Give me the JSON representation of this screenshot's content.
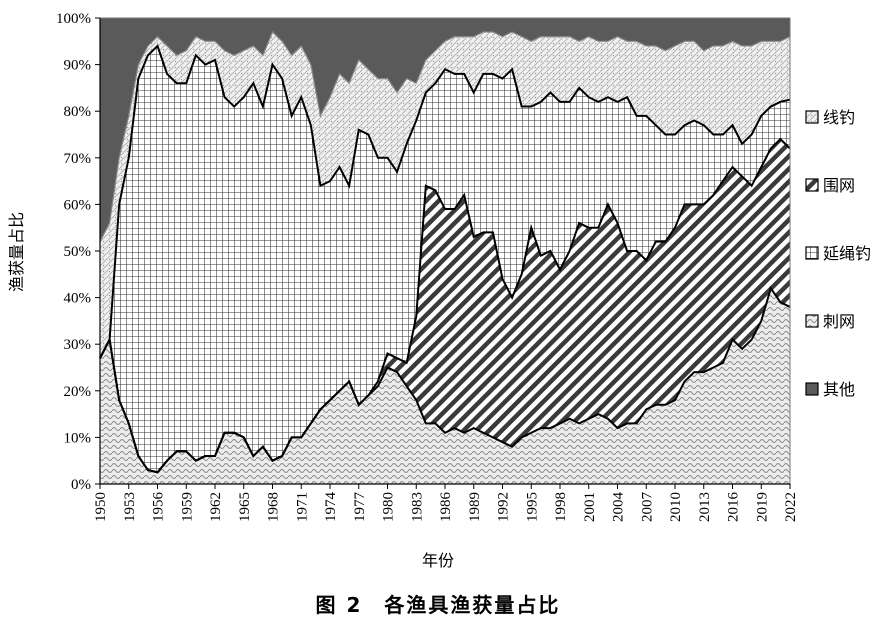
{
  "chart_data": {
    "type": "area",
    "stacked": true,
    "percent": true,
    "title": "图 2　各渔具渔获量占比",
    "xlabel": "年份",
    "ylabel": "渔获量占比",
    "ylim": [
      0,
      100
    ],
    "y_ticks": [
      "0%",
      "10%",
      "20%",
      "30%",
      "40%",
      "50%",
      "60%",
      "70%",
      "80%",
      "90%",
      "100%"
    ],
    "x_range": [
      1950,
      2022
    ],
    "x_ticks": [
      "1950",
      "1953",
      "1956",
      "1959",
      "1962",
      "1965",
      "1968",
      "1971",
      "1974",
      "1977",
      "1980",
      "1983",
      "1986",
      "1989",
      "1992",
      "1995",
      "1998",
      "2001",
      "2004",
      "2007",
      "2010",
      "2013",
      "2016",
      "2019",
      "2022"
    ],
    "legend_position": "right",
    "legend_order": [
      "线钓",
      "围网",
      "延绳钓",
      "刺网",
      "其他"
    ],
    "series_colors": {
      "刺网": "#d9d9d9",
      "延绳钓": "#cfcfcf",
      "围网": "#ffffff",
      "线钓": "#e3e3e3",
      "其他": "#595959"
    },
    "cumulative_keyframes": {
      "_note": "Upper boundary of each stacked layer in percent (stack order bottom→top: 刺网, 围网, 延绳钓, 线钓, 其他=100)",
      "刺网": [
        [
          1950,
          27
        ],
        [
          1951,
          31
        ],
        [
          1952,
          18
        ],
        [
          1953,
          13
        ],
        [
          1954,
          6
        ],
        [
          1955,
          3
        ],
        [
          1956,
          2.5
        ],
        [
          1957,
          5
        ],
        [
          1958,
          7
        ],
        [
          1959,
          7
        ],
        [
          1960,
          5
        ],
        [
          1961,
          6
        ],
        [
          1962,
          6
        ],
        [
          1963,
          11
        ],
        [
          1964,
          11
        ],
        [
          1965,
          10
        ],
        [
          1966,
          6
        ],
        [
          1967,
          8
        ],
        [
          1968,
          5
        ],
        [
          1969,
          6
        ],
        [
          1970,
          10
        ],
        [
          1971,
          10
        ],
        [
          1972,
          13
        ],
        [
          1973,
          16
        ],
        [
          1974,
          18
        ],
        [
          1975,
          20
        ],
        [
          1976,
          22
        ],
        [
          1977,
          17
        ],
        [
          1978,
          19
        ],
        [
          1979,
          21
        ],
        [
          1980,
          25
        ],
        [
          1981,
          24
        ],
        [
          1982,
          21
        ],
        [
          1983,
          18
        ],
        [
          1984,
          13
        ],
        [
          1985,
          13
        ],
        [
          1986,
          11
        ],
        [
          1987,
          12
        ],
        [
          1988,
          11
        ],
        [
          1989,
          12
        ],
        [
          1990,
          11
        ],
        [
          1991,
          10
        ],
        [
          1992,
          9
        ],
        [
          1993,
          8
        ],
        [
          1994,
          10
        ],
        [
          1995,
          11
        ],
        [
          1996,
          12
        ],
        [
          1997,
          12
        ],
        [
          1998,
          13
        ],
        [
          1999,
          14
        ],
        [
          2000,
          13
        ],
        [
          2001,
          14
        ],
        [
          2002,
          15
        ],
        [
          2003,
          14
        ],
        [
          2004,
          12
        ],
        [
          2005,
          13
        ],
        [
          2006,
          13
        ],
        [
          2007,
          16
        ],
        [
          2008,
          17
        ],
        [
          2009,
          17
        ],
        [
          2010,
          18
        ],
        [
          2011,
          22
        ],
        [
          2012,
          24
        ],
        [
          2013,
          24
        ],
        [
          2014,
          25
        ],
        [
          2015,
          26
        ],
        [
          2016,
          31
        ],
        [
          2017,
          29
        ],
        [
          2018,
          31
        ],
        [
          2019,
          35
        ],
        [
          2020,
          42
        ],
        [
          2021,
          39
        ],
        [
          2022,
          38
        ]
      ],
      "围网": [
        [
          1950,
          27
        ],
        [
          1951,
          31
        ],
        [
          1952,
          18
        ],
        [
          1953,
          13
        ],
        [
          1954,
          6
        ],
        [
          1955,
          3
        ],
        [
          1956,
          2.5
        ],
        [
          1957,
          5
        ],
        [
          1958,
          7
        ],
        [
          1959,
          7
        ],
        [
          1960,
          5
        ],
        [
          1961,
          6
        ],
        [
          1962,
          6
        ],
        [
          1963,
          11
        ],
        [
          1964,
          11
        ],
        [
          1965,
          10
        ],
        [
          1966,
          6
        ],
        [
          1967,
          8
        ],
        [
          1968,
          5
        ],
        [
          1969,
          6
        ],
        [
          1970,
          10
        ],
        [
          1971,
          10
        ],
        [
          1972,
          13
        ],
        [
          1973,
          16
        ],
        [
          1974,
          18
        ],
        [
          1975,
          20
        ],
        [
          1976,
          22
        ],
        [
          1977,
          17
        ],
        [
          1978,
          19
        ],
        [
          1979,
          22
        ],
        [
          1980,
          28
        ],
        [
          1981,
          27
        ],
        [
          1982,
          26
        ],
        [
          1983,
          36
        ],
        [
          1984,
          64
        ],
        [
          1985,
          63
        ],
        [
          1986,
          59
        ],
        [
          1987,
          59
        ],
        [
          1988,
          62
        ],
        [
          1989,
          53
        ],
        [
          1990,
          54
        ],
        [
          1991,
          54
        ],
        [
          1992,
          44
        ],
        [
          1993,
          40
        ],
        [
          1994,
          45
        ],
        [
          1995,
          55
        ],
        [
          1996,
          49
        ],
        [
          1997,
          50
        ],
        [
          1998,
          46
        ],
        [
          1999,
          50
        ],
        [
          2000,
          56
        ],
        [
          2001,
          55
        ],
        [
          2002,
          55
        ],
        [
          2003,
          60
        ],
        [
          2004,
          56
        ],
        [
          2005,
          50
        ],
        [
          2006,
          50
        ],
        [
          2007,
          48
        ],
        [
          2008,
          52
        ],
        [
          2009,
          52
        ],
        [
          2010,
          55
        ],
        [
          2011,
          60
        ],
        [
          2012,
          60
        ],
        [
          2013,
          60
        ],
        [
          2014,
          62
        ],
        [
          2015,
          65
        ],
        [
          2016,
          68
        ],
        [
          2017,
          66
        ],
        [
          2018,
          64
        ],
        [
          2019,
          68
        ],
        [
          2020,
          72
        ],
        [
          2021,
          74
        ],
        [
          2022,
          72
        ]
      ],
      "延绳钓": [
        [
          1950,
          27
        ],
        [
          1951,
          31
        ],
        [
          1952,
          60
        ],
        [
          1953,
          70
        ],
        [
          1954,
          87
        ],
        [
          1955,
          92
        ],
        [
          1956,
          94
        ],
        [
          1957,
          88
        ],
        [
          1958,
          86
        ],
        [
          1959,
          86
        ],
        [
          1960,
          92
        ],
        [
          1961,
          90
        ],
        [
          1962,
          91
        ],
        [
          1963,
          83
        ],
        [
          1964,
          81
        ],
        [
          1965,
          83
        ],
        [
          1966,
          86
        ],
        [
          1967,
          81
        ],
        [
          1968,
          90
        ],
        [
          1969,
          87
        ],
        [
          1970,
          79
        ],
        [
          1971,
          83
        ],
        [
          1972,
          77
        ],
        [
          1973,
          64
        ],
        [
          1974,
          65
        ],
        [
          1975,
          68
        ],
        [
          1976,
          64
        ],
        [
          1977,
          76
        ],
        [
          1978,
          75
        ],
        [
          1979,
          70
        ],
        [
          1980,
          70
        ],
        [
          1981,
          67
        ],
        [
          1982,
          73
        ],
        [
          1983,
          78
        ],
        [
          1984,
          84
        ],
        [
          1985,
          86
        ],
        [
          1986,
          89
        ],
        [
          1987,
          88
        ],
        [
          1988,
          88
        ],
        [
          1989,
          84
        ],
        [
          1990,
          88
        ],
        [
          1991,
          88
        ],
        [
          1992,
          87
        ],
        [
          1993,
          89
        ],
        [
          1994,
          81
        ],
        [
          1995,
          81
        ],
        [
          1996,
          82
        ],
        [
          1997,
          84
        ],
        [
          1998,
          82
        ],
        [
          1999,
          82
        ],
        [
          2000,
          85
        ],
        [
          2001,
          83
        ],
        [
          2002,
          82
        ],
        [
          2003,
          83
        ],
        [
          2004,
          82
        ],
        [
          2005,
          83
        ],
        [
          2006,
          79
        ],
        [
          2007,
          79
        ],
        [
          2008,
          77
        ],
        [
          2009,
          75
        ],
        [
          2010,
          75
        ],
        [
          2011,
          77
        ],
        [
          2012,
          78
        ],
        [
          2013,
          77
        ],
        [
          2014,
          75
        ],
        [
          2015,
          75
        ],
        [
          2016,
          77
        ],
        [
          2017,
          73
        ],
        [
          2018,
          75
        ],
        [
          2019,
          79
        ],
        [
          2020,
          81
        ],
        [
          2021,
          82
        ],
        [
          2022,
          82.5
        ]
      ],
      "线钓": [
        [
          1950,
          52
        ],
        [
          1951,
          56
        ],
        [
          1952,
          70
        ],
        [
          1953,
          79
        ],
        [
          1954,
          90
        ],
        [
          1955,
          94
        ],
        [
          1956,
          96
        ],
        [
          1957,
          94
        ],
        [
          1958,
          92
        ],
        [
          1959,
          93
        ],
        [
          1960,
          96
        ],
        [
          1961,
          95
        ],
        [
          1962,
          95
        ],
        [
          1963,
          93
        ],
        [
          1964,
          92
        ],
        [
          1965,
          93
        ],
        [
          1966,
          94
        ],
        [
          1967,
          92
        ],
        [
          1968,
          97
        ],
        [
          1969,
          95
        ],
        [
          1970,
          92
        ],
        [
          1971,
          94
        ],
        [
          1972,
          90
        ],
        [
          1973,
          79
        ],
        [
          1974,
          83
        ],
        [
          1975,
          88
        ],
        [
          1976,
          86
        ],
        [
          1977,
          91
        ],
        [
          1978,
          89
        ],
        [
          1979,
          87
        ],
        [
          1980,
          87
        ],
        [
          1981,
          84
        ],
        [
          1982,
          87
        ],
        [
          1983,
          86
        ],
        [
          1984,
          91
        ],
        [
          1985,
          93
        ],
        [
          1986,
          95
        ],
        [
          1987,
          96
        ],
        [
          1988,
          96
        ],
        [
          1989,
          96
        ],
        [
          1990,
          97
        ],
        [
          1991,
          97
        ],
        [
          1992,
          96
        ],
        [
          1993,
          97
        ],
        [
          1994,
          96
        ],
        [
          1995,
          95
        ],
        [
          1996,
          96
        ],
        [
          1997,
          96
        ],
        [
          1998,
          96
        ],
        [
          1999,
          96
        ],
        [
          2000,
          95
        ],
        [
          2001,
          96
        ],
        [
          2002,
          95
        ],
        [
          2003,
          95
        ],
        [
          2004,
          96
        ],
        [
          2005,
          95
        ],
        [
          2006,
          95
        ],
        [
          2007,
          94
        ],
        [
          2008,
          94
        ],
        [
          2009,
          93
        ],
        [
          2010,
          94
        ],
        [
          2011,
          95
        ],
        [
          2012,
          95
        ],
        [
          2013,
          93
        ],
        [
          2014,
          94
        ],
        [
          2015,
          94
        ],
        [
          2016,
          95
        ],
        [
          2017,
          94
        ],
        [
          2018,
          94
        ],
        [
          2019,
          95
        ],
        [
          2020,
          95
        ],
        [
          2021,
          95
        ],
        [
          2022,
          96
        ]
      ],
      "其他": [
        [
          1950,
          100
        ],
        [
          2022,
          100
        ]
      ]
    }
  },
  "legend": [
    {
      "label": "线钓",
      "pattern": "p-line"
    },
    {
      "label": "围网",
      "pattern": "p-purse"
    },
    {
      "label": "延绳钓",
      "pattern": "p-longline"
    },
    {
      "label": "刺网",
      "pattern": "p-gill"
    },
    {
      "label": "其他",
      "pattern": "p-other"
    }
  ],
  "caption": "图 2　各渔具渔获量占比"
}
